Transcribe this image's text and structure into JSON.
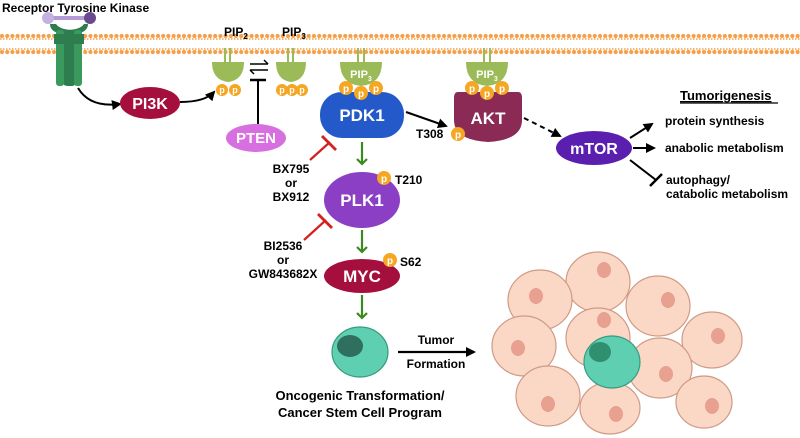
{
  "receptor": {
    "label": "Receptor Tyrosine Kinase"
  },
  "lipids": {
    "pip2": "PIP",
    "pip2_sub": "2",
    "pip3": "PIP",
    "pip3_sub": "3",
    "pip3_on_protein": "PIP",
    "pip3_on_protein_sub": "3"
  },
  "phospho": {
    "p": "p"
  },
  "proteins": {
    "pi3k": "PI3K",
    "pten": "PTEN",
    "pdk1": "PDK1",
    "akt": "AKT",
    "mtor": "mTOR",
    "plk1": "PLK1",
    "myc": "MYC"
  },
  "sites": {
    "t308": "T308",
    "t210": "T210",
    "s62": "S62"
  },
  "inhibitors": {
    "pdk1": {
      "line1": "BX795",
      "line2": "or",
      "line3": "BX912"
    },
    "plk1": {
      "line1": "BI2536",
      "line2": "or",
      "line3": "GW843682X"
    }
  },
  "tumorigenesis": {
    "title": "Tumorigenesis",
    "out1": "protein synthesis",
    "out2": "anabolic metabolism",
    "out3a": "autophagy/",
    "out3b": "catabolic metabolism"
  },
  "tumor_formation": {
    "line1": "Tumor",
    "line2": "Formation"
  },
  "transformation": {
    "line1": "Oncogenic Transformation/",
    "line2": "Cancer Stem Cell Program"
  },
  "colors": {
    "membrane": "#f5a04a",
    "receptor": "#2e7d4f",
    "receptor_top": "#7b5aa6",
    "lipid_head": "#9bbb59",
    "phospho": "#f5a623",
    "pi3k": "#a50f3e",
    "pten": "#d86fe0",
    "pdk1": "#2459c9",
    "akt": "#8b2a55",
    "mtor": "#5b1fb0",
    "plk1": "#8a3fc4",
    "myc": "#a50f3e",
    "inhibitor": "#d62020",
    "green_arrow": "#3a8a1f",
    "stem_cell": "#5ecfb0",
    "tumor_cell": "#fbd8c6",
    "tumor_nucleus": "#e8a090"
  }
}
